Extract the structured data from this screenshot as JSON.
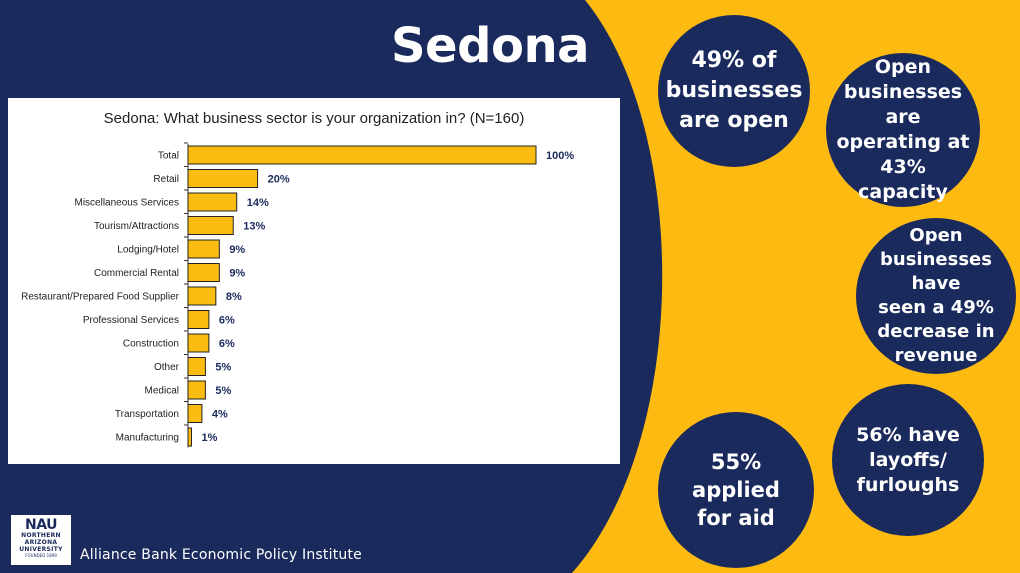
{
  "slide": {
    "title": "Sedona",
    "footer": "Alliance Bank Economic Policy Institute",
    "logo": {
      "mark": "NAU",
      "line1": "NORTHERN",
      "line2": "ARIZONA",
      "line3": "UNIVERSITY",
      "founded": "FOUNDED 1899"
    }
  },
  "colors": {
    "navy": "#1B2A5C",
    "gold": "#FDBB12",
    "bar": "#FBBC12",
    "label": "#1B2A5C"
  },
  "stats": {
    "open": [
      "49% of",
      "businesses",
      "are open"
    ],
    "capacity": [
      "Open",
      "businesses are",
      "operating at",
      "43% capacity"
    ],
    "revenue": [
      "Open",
      "businesses have",
      "seen a 49%",
      "decrease in",
      "revenue"
    ],
    "layoffs": [
      "56% have",
      "layoffs/",
      "furloughs"
    ],
    "aid": [
      "55%",
      "applied",
      "for aid"
    ]
  },
  "chart_data": {
    "type": "bar",
    "orientation": "horizontal",
    "title": "Sedona: What business sector is your organization in? (N=160)",
    "categories": [
      "Total",
      "Retail",
      "Miscellaneous Services",
      "Tourism/Attractions",
      "Lodging/Hotel",
      "Commercial Rental",
      "Restaurant/Prepared Food Supplier",
      "Professional Services",
      "Construction",
      "Other",
      "Medical",
      "Transportation",
      "Manufacturing"
    ],
    "values": [
      100,
      20,
      14,
      13,
      9,
      9,
      8,
      6,
      6,
      5,
      5,
      4,
      1
    ],
    "value_labels": [
      "100%",
      "20%",
      "14%",
      "13%",
      "9%",
      "9%",
      "8%",
      "6%",
      "6%",
      "5%",
      "5%",
      "4%",
      "1%"
    ],
    "xlim": [
      0,
      100
    ],
    "xlabel": "",
    "ylabel": ""
  }
}
